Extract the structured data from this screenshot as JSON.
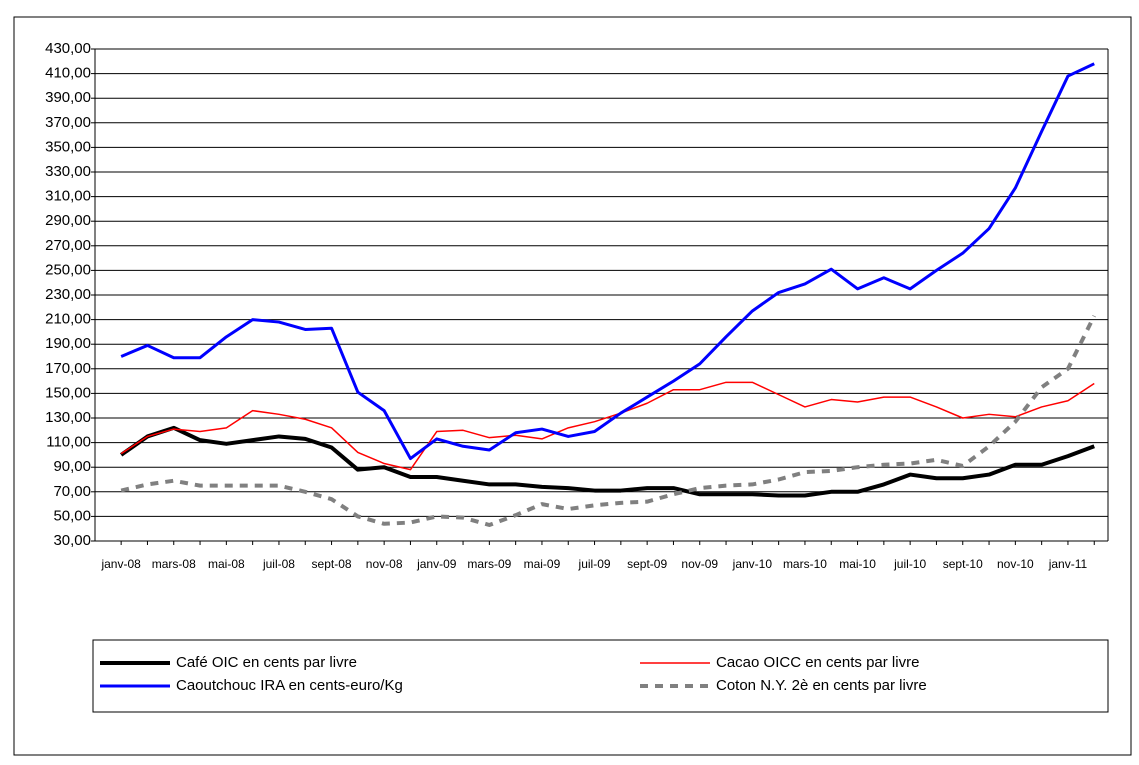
{
  "chart_data": {
    "type": "line",
    "categories": [
      "janv-08",
      null,
      "mars-08",
      null,
      "mai-08",
      null,
      "juil-08",
      null,
      "sept-08",
      null,
      "nov-08",
      null,
      "janv-09",
      null,
      "mars-09",
      null,
      "mai-09",
      null,
      "juil-09",
      null,
      "sept-09",
      null,
      "nov-09",
      null,
      "janv-10",
      null,
      "mars-10",
      null,
      "mai-10",
      null,
      "juil-10",
      null,
      "sept-10",
      null,
      "nov-10",
      null,
      "janv-11",
      null
    ],
    "series": [
      {
        "name": "Café  OIC en cents par livre",
        "color": "#000000",
        "dashed": false,
        "values": [
          100,
          115,
          122,
          112,
          109,
          112,
          115,
          113,
          106,
          88,
          90,
          82,
          82,
          79,
          76,
          76,
          74,
          73,
          71,
          71,
          73,
          73,
          68,
          68,
          68,
          67,
          67,
          70,
          70,
          76,
          84,
          81,
          81,
          84,
          92,
          92,
          99,
          107
        ]
      },
      {
        "name": "Cacao OICC en cents par livre",
        "color": "#ff0000",
        "dashed": false,
        "values": [
          101,
          115,
          121,
          119,
          122,
          136,
          133,
          129,
          122,
          102,
          93,
          88,
          119,
          120,
          114,
          116,
          113,
          122,
          127,
          134,
          142,
          153,
          153,
          159,
          159,
          149,
          139,
          145,
          143,
          147,
          147,
          139,
          130,
          133,
          131,
          139,
          144,
          158
        ]
      },
      {
        "name": "Caoutchouc IRA en cents-euro/Kg",
        "color": "#0000ff",
        "dashed": false,
        "values": [
          180,
          189,
          179,
          179,
          196,
          210,
          208,
          202,
          203,
          151,
          136,
          97,
          113,
          107,
          104,
          118,
          121,
          115,
          119,
          134,
          147,
          160,
          174,
          196,
          217,
          232,
          239,
          251,
          235,
          244,
          235,
          250,
          264,
          284,
          317,
          363,
          408,
          418
        ]
      },
      {
        "name": "Coton N.Y. 2è en cents par livre",
        "color": "#808080",
        "dashed": true,
        "values": [
          71,
          76,
          79,
          75,
          75,
          75,
          75,
          70,
          64,
          50,
          44,
          45,
          50,
          49,
          43,
          51,
          60,
          56,
          59,
          61,
          62,
          68,
          73,
          75,
          76,
          80,
          86,
          87,
          90,
          92,
          93,
          96,
          91,
          107,
          127,
          155,
          170,
          213
        ]
      }
    ],
    "ylim": [
      30,
      430
    ],
    "yticks": [
      {
        "value": 30,
        "label": "30,00"
      },
      {
        "value": 50,
        "label": "50,00"
      },
      {
        "value": 70,
        "label": "70,00"
      },
      {
        "value": 90,
        "label": "90,00"
      },
      {
        "value": 110,
        "label": "110,00"
      },
      {
        "value": 130,
        "label": "130,00"
      },
      {
        "value": 150,
        "label": "150,00"
      },
      {
        "value": 170,
        "label": "170,00"
      },
      {
        "value": 190,
        "label": "190,00"
      },
      {
        "value": 210,
        "label": "210,00"
      },
      {
        "value": 230,
        "label": "230,00"
      },
      {
        "value": 250,
        "label": "250,00"
      },
      {
        "value": 270,
        "label": "270,00"
      },
      {
        "value": 290,
        "label": "290,00"
      },
      {
        "value": 310,
        "label": "310,00"
      },
      {
        "value": 330,
        "label": "330,00"
      },
      {
        "value": 350,
        "label": "350,00"
      },
      {
        "value": 370,
        "label": "370,00"
      },
      {
        "value": 390,
        "label": "390,00"
      },
      {
        "value": 410,
        "label": "410,00"
      },
      {
        "value": 430,
        "label": "430,00"
      }
    ],
    "grid": true
  }
}
